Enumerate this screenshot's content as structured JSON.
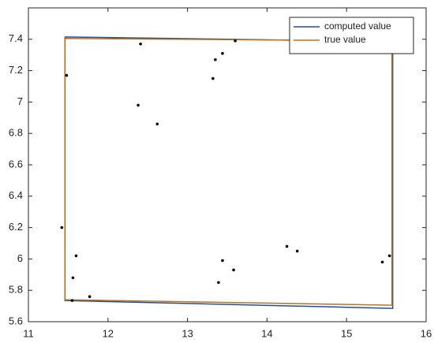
{
  "chart_data": {
    "type": "line",
    "xlim": [
      11,
      16
    ],
    "ylim": [
      5.6,
      7.6
    ],
    "xticks": [
      11,
      12,
      13,
      14,
      15,
      16
    ],
    "yticks": [
      5.6,
      5.8,
      6,
      6.2,
      6.4,
      6.6,
      6.8,
      7,
      7.2,
      7.4
    ],
    "legend": "upper right",
    "series": [
      {
        "name": "computed value",
        "color": "#1f4e9c",
        "x": [
          11.46,
          15.58,
          15.58,
          11.46,
          11.46
        ],
        "values": [
          7.415,
          7.385,
          5.685,
          5.735,
          7.415
        ]
      },
      {
        "name": "true value",
        "color": "#b8741a",
        "x": [
          11.46,
          15.57,
          15.57,
          11.46,
          11.46
        ],
        "values": [
          7.405,
          7.39,
          5.705,
          5.74,
          7.405
        ]
      }
    ],
    "scatter": {
      "color": "#000000",
      "x": [
        11.48,
        12.41,
        12.38,
        12.62,
        13.35,
        13.44,
        13.6,
        13.32,
        11.42,
        11.6,
        11.56,
        11.77,
        11.55,
        14.25,
        14.38,
        13.44,
        13.58,
        13.39,
        15.45,
        15.54
      ],
      "y": [
        7.17,
        7.37,
        6.98,
        6.86,
        7.27,
        7.31,
        7.39,
        7.15,
        6.2,
        6.02,
        5.88,
        5.76,
        5.735,
        6.08,
        6.05,
        5.99,
        5.93,
        5.85,
        5.98,
        6.02
      ]
    }
  }
}
